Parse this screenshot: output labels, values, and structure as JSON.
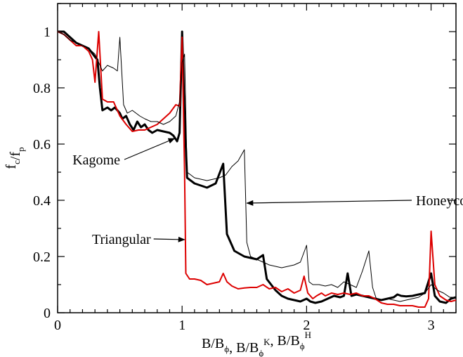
{
  "chart_data": {
    "type": "line",
    "title": "",
    "xlabel": "B/Bϕ, B/BϕK, B/BϕH",
    "xlabel_parts": [
      {
        "text": "B/B",
        "sub": "",
        "sup": ""
      },
      {
        "text": "",
        "sub": "ϕ",
        "sup": ""
      },
      {
        "text": ", B/B",
        "sub": "",
        "sup": ""
      },
      {
        "text": "",
        "sub": "ϕ",
        "sup": "K"
      },
      {
        "text": ", B/B",
        "sub": "",
        "sup": ""
      },
      {
        "text": "",
        "sub": "ϕ",
        "sup": "H"
      }
    ],
    "ylabel": "fc/fp",
    "ylabel_parts": [
      {
        "text": "f",
        "sub": ""
      },
      {
        "text": "",
        "sub": "c"
      },
      {
        "text": "/f",
        "sub": ""
      },
      {
        "text": "",
        "sub": "p"
      }
    ],
    "xlim": [
      0,
      3.2
    ],
    "ylim": [
      0,
      1.1
    ],
    "xticks": [
      0,
      1,
      2,
      3
    ],
    "xtick_labels": [
      "0",
      "1",
      "2",
      "3"
    ],
    "yticks": [
      0,
      0.2,
      0.4,
      0.6,
      0.8,
      1
    ],
    "ytick_labels": [
      "0",
      "0.2",
      "0.4",
      "0.6",
      "0.8",
      "1"
    ],
    "grid": false,
    "legend": "none",
    "annotations": [
      {
        "text": "Kagome",
        "series": "kagome",
        "points_to": [
          0.94,
          0.62
        ]
      },
      {
        "text": "Honeycomb",
        "series": "honeycomb",
        "points_to": [
          1.52,
          0.39
        ]
      },
      {
        "text": "Triangular",
        "series": "triangular",
        "points_to": [
          1.02,
          0.26
        ]
      }
    ],
    "series": [
      {
        "key": "kagome",
        "color": "#000000",
        "width": 3,
        "points": [
          [
            0,
            1
          ],
          [
            0.05,
            1
          ],
          [
            0.1,
            0.98
          ],
          [
            0.15,
            0.96
          ],
          [
            0.2,
            0.95
          ],
          [
            0.25,
            0.94
          ],
          [
            0.3,
            0.91
          ],
          [
            0.32,
            0.9
          ],
          [
            0.34,
            0.8
          ],
          [
            0.36,
            0.72
          ],
          [
            0.4,
            0.73
          ],
          [
            0.43,
            0.72
          ],
          [
            0.46,
            0.73
          ],
          [
            0.5,
            0.71
          ],
          [
            0.52,
            0.69
          ],
          [
            0.55,
            0.7
          ],
          [
            0.58,
            0.67
          ],
          [
            0.61,
            0.65
          ],
          [
            0.64,
            0.68
          ],
          [
            0.67,
            0.66
          ],
          [
            0.7,
            0.67
          ],
          [
            0.73,
            0.65
          ],
          [
            0.76,
            0.64
          ],
          [
            0.8,
            0.65
          ],
          [
            0.85,
            0.645
          ],
          [
            0.9,
            0.64
          ],
          [
            0.93,
            0.63
          ],
          [
            0.96,
            0.61
          ],
          [
            0.98,
            0.64
          ],
          [
            1,
            1
          ],
          [
            1.02,
            0.7
          ],
          [
            1.04,
            0.48
          ],
          [
            1.1,
            0.46
          ],
          [
            1.2,
            0.445
          ],
          [
            1.27,
            0.46
          ],
          [
            1.33,
            0.53
          ],
          [
            1.36,
            0.28
          ],
          [
            1.42,
            0.22
          ],
          [
            1.5,
            0.2
          ],
          [
            1.6,
            0.19
          ],
          [
            1.65,
            0.205
          ],
          [
            1.68,
            0.12
          ],
          [
            1.75,
            0.08
          ],
          [
            1.8,
            0.06
          ],
          [
            1.85,
            0.05
          ],
          [
            1.9,
            0.045
          ],
          [
            1.95,
            0.04
          ],
          [
            2,
            0.05
          ],
          [
            2.03,
            0.04
          ],
          [
            2.07,
            0.035
          ],
          [
            2.12,
            0.04
          ],
          [
            2.17,
            0.05
          ],
          [
            2.22,
            0.06
          ],
          [
            2.27,
            0.055
          ],
          [
            2.3,
            0.06
          ],
          [
            2.33,
            0.14
          ],
          [
            2.36,
            0.06
          ],
          [
            2.4,
            0.065
          ],
          [
            2.45,
            0.06
          ],
          [
            2.5,
            0.055
          ],
          [
            2.55,
            0.05
          ],
          [
            2.6,
            0.045
          ],
          [
            2.65,
            0.05
          ],
          [
            2.7,
            0.055
          ],
          [
            2.73,
            0.065
          ],
          [
            2.76,
            0.06
          ],
          [
            2.8,
            0.058
          ],
          [
            2.85,
            0.06
          ],
          [
            2.9,
            0.065
          ],
          [
            2.95,
            0.07
          ],
          [
            3,
            0.14
          ],
          [
            3.03,
            0.06
          ],
          [
            3.07,
            0.04
          ],
          [
            3.12,
            0.035
          ],
          [
            3.16,
            0.05
          ],
          [
            3.2,
            0.055
          ]
        ]
      },
      {
        "key": "triangular",
        "color": "#dd0000",
        "width": 2,
        "points": [
          [
            0,
            1
          ],
          [
            0.05,
            0.99
          ],
          [
            0.1,
            0.97
          ],
          [
            0.15,
            0.95
          ],
          [
            0.2,
            0.95
          ],
          [
            0.25,
            0.93
          ],
          [
            0.28,
            0.9
          ],
          [
            0.3,
            0.82
          ],
          [
            0.33,
            1
          ],
          [
            0.36,
            0.76
          ],
          [
            0.4,
            0.75
          ],
          [
            0.45,
            0.75
          ],
          [
            0.5,
            0.7
          ],
          [
            0.55,
            0.67
          ],
          [
            0.6,
            0.645
          ],
          [
            0.65,
            0.65
          ],
          [
            0.7,
            0.65
          ],
          [
            0.75,
            0.66
          ],
          [
            0.8,
            0.67
          ],
          [
            0.85,
            0.69
          ],
          [
            0.9,
            0.71
          ],
          [
            0.95,
            0.74
          ],
          [
            0.98,
            0.735
          ],
          [
            1,
            0.98
          ],
          [
            1.02,
            0.5
          ],
          [
            1.03,
            0.14
          ],
          [
            1.06,
            0.12
          ],
          [
            1.1,
            0.12
          ],
          [
            1.15,
            0.115
          ],
          [
            1.2,
            0.1
          ],
          [
            1.25,
            0.105
          ],
          [
            1.3,
            0.11
          ],
          [
            1.33,
            0.14
          ],
          [
            1.36,
            0.11
          ],
          [
            1.4,
            0.095
          ],
          [
            1.45,
            0.085
          ],
          [
            1.5,
            0.088
          ],
          [
            1.55,
            0.09
          ],
          [
            1.6,
            0.09
          ],
          [
            1.65,
            0.1
          ],
          [
            1.7,
            0.085
          ],
          [
            1.75,
            0.09
          ],
          [
            1.8,
            0.075
          ],
          [
            1.85,
            0.085
          ],
          [
            1.9,
            0.07
          ],
          [
            1.95,
            0.08
          ],
          [
            1.98,
            0.13
          ],
          [
            2.01,
            0.07
          ],
          [
            2.05,
            0.05
          ],
          [
            2.08,
            0.06
          ],
          [
            2.12,
            0.07
          ],
          [
            2.15,
            0.06
          ],
          [
            2.2,
            0.07
          ],
          [
            2.25,
            0.065
          ],
          [
            2.3,
            0.07
          ],
          [
            2.35,
            0.065
          ],
          [
            2.4,
            0.07
          ],
          [
            2.45,
            0.06
          ],
          [
            2.5,
            0.06
          ],
          [
            2.55,
            0.05
          ],
          [
            2.6,
            0.035
          ],
          [
            2.65,
            0.03
          ],
          [
            2.7,
            0.03
          ],
          [
            2.75,
            0.025
          ],
          [
            2.8,
            0.025
          ],
          [
            2.85,
            0.025
          ],
          [
            2.9,
            0.02
          ],
          [
            2.95,
            0.02
          ],
          [
            2.98,
            0.05
          ],
          [
            3,
            0.29
          ],
          [
            3.03,
            0.1
          ],
          [
            3.07,
            0.06
          ],
          [
            3.12,
            0.045
          ],
          [
            3.16,
            0.04
          ],
          [
            3.2,
            0.045
          ]
        ]
      },
      {
        "key": "honeycomb",
        "color": "#000000",
        "width": 1,
        "points": [
          [
            0,
            1
          ],
          [
            0.05,
            0.99
          ],
          [
            0.1,
            0.97
          ],
          [
            0.15,
            0.96
          ],
          [
            0.2,
            0.95
          ],
          [
            0.25,
            0.94
          ],
          [
            0.3,
            0.92
          ],
          [
            0.33,
            0.89
          ],
          [
            0.36,
            0.86
          ],
          [
            0.4,
            0.88
          ],
          [
            0.45,
            0.87
          ],
          [
            0.48,
            0.86
          ],
          [
            0.5,
            0.98
          ],
          [
            0.53,
            0.74
          ],
          [
            0.56,
            0.71
          ],
          [
            0.6,
            0.72
          ],
          [
            0.63,
            0.71
          ],
          [
            0.66,
            0.7
          ],
          [
            0.7,
            0.69
          ],
          [
            0.75,
            0.68
          ],
          [
            0.8,
            0.68
          ],
          [
            0.85,
            0.67
          ],
          [
            0.9,
            0.68
          ],
          [
            0.95,
            0.7
          ],
          [
            0.98,
            0.75
          ],
          [
            1,
            0.89
          ],
          [
            1.02,
            0.92
          ],
          [
            1.04,
            0.5
          ],
          [
            1.1,
            0.48
          ],
          [
            1.2,
            0.47
          ],
          [
            1.3,
            0.48
          ],
          [
            1.35,
            0.49
          ],
          [
            1.4,
            0.52
          ],
          [
            1.45,
            0.54
          ],
          [
            1.5,
            0.58
          ],
          [
            1.52,
            0.25
          ],
          [
            1.55,
            0.2
          ],
          [
            1.6,
            0.19
          ],
          [
            1.65,
            0.18
          ],
          [
            1.7,
            0.17
          ],
          [
            1.8,
            0.16
          ],
          [
            1.9,
            0.17
          ],
          [
            1.95,
            0.18
          ],
          [
            2,
            0.24
          ],
          [
            2.02,
            0.11
          ],
          [
            2.05,
            0.1
          ],
          [
            2.1,
            0.1
          ],
          [
            2.15,
            0.095
          ],
          [
            2.2,
            0.1
          ],
          [
            2.25,
            0.09
          ],
          [
            2.3,
            0.11
          ],
          [
            2.35,
            0.1
          ],
          [
            2.4,
            0.09
          ],
          [
            2.45,
            0.15
          ],
          [
            2.5,
            0.22
          ],
          [
            2.53,
            0.09
          ],
          [
            2.56,
            0.05
          ],
          [
            2.6,
            0.045
          ],
          [
            2.65,
            0.05
          ],
          [
            2.7,
            0.045
          ],
          [
            2.75,
            0.04
          ],
          [
            2.8,
            0.045
          ],
          [
            2.85,
            0.05
          ],
          [
            2.9,
            0.055
          ],
          [
            2.95,
            0.07
          ],
          [
            3,
            0.1
          ],
          [
            3.05,
            0.08
          ],
          [
            3.1,
            0.07
          ],
          [
            3.15,
            0.055
          ],
          [
            3.2,
            0.055
          ]
        ]
      }
    ]
  }
}
